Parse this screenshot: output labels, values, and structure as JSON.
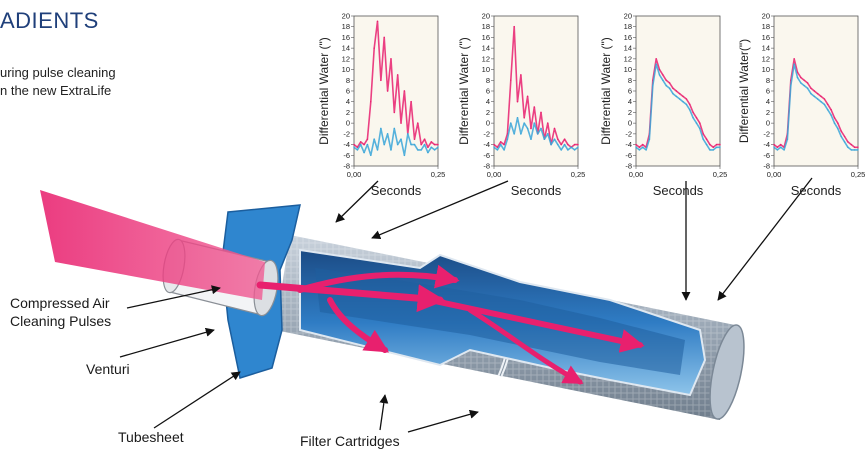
{
  "page": {
    "title": "ADIENTS",
    "intro_lines": [
      "uring pulse cleaning",
      "n the new ExtraLife"
    ]
  },
  "diagram": {
    "labels": {
      "compressed_air_line1": "Compressed Air",
      "compressed_air_line2": "Cleaning Pulses",
      "venturi": "Venturi",
      "tubesheet": "Tubesheet",
      "filter_cartridges": "Filter Cartridges"
    },
    "colors": {
      "pulse": "#e8206e",
      "tubesheet": "#2f86cf",
      "cartridge_outer": "#8c9bab",
      "cartridge_inner": "#2a6fb5",
      "cartridge_deep": "#16406f"
    }
  },
  "chart_data": [
    {
      "type": "line",
      "xlabel": "Seconds",
      "ylabel": "Differential Water (\")",
      "xlim": [
        0,
        0.25
      ],
      "ylim": [
        -8,
        20
      ],
      "x_tick_labels": [
        "0,00",
        "0,25"
      ],
      "y_ticks": [
        20,
        18,
        16,
        14,
        12,
        10,
        8,
        6,
        4,
        2,
        0,
        -2,
        -4,
        -6,
        -8
      ],
      "grid": false,
      "series": [
        {
          "color": "#e8206e",
          "x": [
            0,
            0.01,
            0.02,
            0.03,
            0.04,
            0.05,
            0.06,
            0.07,
            0.08,
            0.09,
            0.1,
            0.11,
            0.12,
            0.13,
            0.14,
            0.15,
            0.16,
            0.17,
            0.18,
            0.19,
            0.2,
            0.21,
            0.22,
            0.23,
            0.24,
            0.25
          ],
          "y": [
            -4,
            -4.5,
            -3.5,
            -4,
            -3,
            4,
            14,
            19,
            8,
            16,
            6,
            12,
            2,
            9,
            0,
            6,
            -2,
            4,
            -3,
            0,
            -4,
            -3,
            -4.5,
            -3.5,
            -4,
            -4
          ]
        },
        {
          "color": "#3aa6d8",
          "x": [
            0,
            0.01,
            0.02,
            0.03,
            0.04,
            0.05,
            0.06,
            0.07,
            0.08,
            0.09,
            0.1,
            0.11,
            0.12,
            0.13,
            0.14,
            0.15,
            0.16,
            0.17,
            0.18,
            0.19,
            0.2,
            0.21,
            0.22,
            0.23,
            0.24,
            0.25
          ],
          "y": [
            -4.5,
            -5,
            -4,
            -5.5,
            -4,
            -6,
            -3,
            -5,
            -1,
            -4,
            -2,
            -5,
            -1,
            -4,
            -3,
            -6,
            -2,
            -4,
            -4,
            -5,
            -5,
            -4,
            -5.5,
            -4.5,
            -5,
            -4.5
          ]
        }
      ]
    },
    {
      "type": "line",
      "xlabel": "Seconds",
      "ylabel": "Differential Water (\")",
      "xlim": [
        0,
        0.25
      ],
      "ylim": [
        -8,
        20
      ],
      "x_tick_labels": [
        "0,00",
        "0,25"
      ],
      "y_ticks": [
        20,
        18,
        16,
        14,
        12,
        10,
        8,
        6,
        4,
        2,
        0,
        -2,
        -4,
        -6,
        -8
      ],
      "grid": false,
      "series": [
        {
          "color": "#e8206e",
          "x": [
            0,
            0.01,
            0.02,
            0.03,
            0.04,
            0.05,
            0.06,
            0.07,
            0.08,
            0.09,
            0.1,
            0.11,
            0.12,
            0.13,
            0.14,
            0.15,
            0.16,
            0.17,
            0.18,
            0.19,
            0.2,
            0.21,
            0.22,
            0.23,
            0.24,
            0.25
          ],
          "y": [
            -4,
            -4.5,
            -3.5,
            -4,
            -2,
            8,
            18,
            4,
            9,
            1,
            5,
            -1,
            3,
            -2,
            2,
            -3,
            0,
            -4,
            -1,
            -3,
            -4,
            -3,
            -4,
            -4.5,
            -4,
            -4
          ]
        },
        {
          "color": "#3aa6d8",
          "x": [
            0,
            0.01,
            0.02,
            0.03,
            0.04,
            0.05,
            0.06,
            0.07,
            0.08,
            0.09,
            0.1,
            0.11,
            0.12,
            0.13,
            0.14,
            0.15,
            0.16,
            0.17,
            0.18,
            0.19,
            0.2,
            0.21,
            0.22,
            0.23,
            0.24,
            0.25
          ],
          "y": [
            -4.5,
            -5,
            -4,
            -5,
            -3,
            0,
            -2,
            1,
            -2,
            0,
            -1,
            -3,
            0,
            -2,
            -1,
            -3,
            -2,
            -4,
            -3,
            -4,
            -5,
            -4,
            -5,
            -4.5,
            -5,
            -4.5
          ]
        }
      ]
    },
    {
      "type": "line",
      "xlabel": "Seconds",
      "ylabel": "Differential Water (\")",
      "xlim": [
        0,
        0.25
      ],
      "ylim": [
        -8,
        20
      ],
      "x_tick_labels": [
        "0,00",
        "0,25"
      ],
      "y_ticks": [
        20,
        18,
        16,
        14,
        12,
        10,
        8,
        6,
        4,
        2,
        0,
        -2,
        -4,
        -6,
        -8
      ],
      "grid": false,
      "series": [
        {
          "color": "#e8206e",
          "x": [
            0,
            0.01,
            0.02,
            0.03,
            0.04,
            0.05,
            0.06,
            0.07,
            0.08,
            0.09,
            0.1,
            0.11,
            0.12,
            0.13,
            0.14,
            0.15,
            0.16,
            0.17,
            0.18,
            0.19,
            0.2,
            0.21,
            0.22,
            0.23,
            0.24,
            0.25
          ],
          "y": [
            -4,
            -4.5,
            -4,
            -4.5,
            -2,
            8,
            12,
            10,
            9,
            8,
            7.5,
            6.5,
            6,
            5.5,
            5,
            4.5,
            3.5,
            2,
            1,
            0,
            -2,
            -3,
            -4,
            -4.5,
            -4,
            -4
          ]
        },
        {
          "color": "#3aa6d8",
          "x": [
            0,
            0.01,
            0.02,
            0.03,
            0.04,
            0.05,
            0.06,
            0.07,
            0.08,
            0.09,
            0.1,
            0.11,
            0.12,
            0.13,
            0.14,
            0.15,
            0.16,
            0.17,
            0.18,
            0.19,
            0.2,
            0.21,
            0.22,
            0.23,
            0.24,
            0.25
          ],
          "y": [
            -4.5,
            -5,
            -4.5,
            -5,
            -3,
            7,
            11,
            9,
            8,
            7,
            6.5,
            5.5,
            5,
            4.5,
            4,
            3.5,
            2.5,
            1,
            0,
            -1,
            -3,
            -4,
            -5,
            -5,
            -4.5,
            -4.5
          ]
        }
      ]
    },
    {
      "type": "line",
      "xlabel": "Seconds",
      "ylabel": "Differential Water(\")",
      "xlim": [
        0,
        0.25
      ],
      "ylim": [
        -8,
        20
      ],
      "x_tick_labels": [
        "0,00",
        "0,25"
      ],
      "y_ticks": [
        20,
        18,
        16,
        14,
        12,
        10,
        8,
        6,
        4,
        2,
        0,
        -2,
        -4,
        -6,
        -8
      ],
      "grid": false,
      "series": [
        {
          "color": "#e8206e",
          "x": [
            0,
            0.01,
            0.02,
            0.03,
            0.04,
            0.05,
            0.06,
            0.07,
            0.08,
            0.09,
            0.1,
            0.11,
            0.12,
            0.13,
            0.14,
            0.15,
            0.16,
            0.17,
            0.18,
            0.19,
            0.2,
            0.21,
            0.22,
            0.23,
            0.24,
            0.25
          ],
          "y": [
            -4,
            -4.5,
            -4,
            -4.5,
            -2,
            8,
            12,
            9.5,
            8.5,
            8,
            7.5,
            6.5,
            6,
            5.5,
            5,
            4.5,
            3.5,
            2.5,
            1,
            0,
            -1.5,
            -2.5,
            -3.5,
            -4,
            -4.5,
            -4.5
          ]
        },
        {
          "color": "#3aa6d8",
          "x": [
            0,
            0.01,
            0.02,
            0.03,
            0.04,
            0.05,
            0.06,
            0.07,
            0.08,
            0.09,
            0.1,
            0.11,
            0.12,
            0.13,
            0.14,
            0.15,
            0.16,
            0.17,
            0.18,
            0.19,
            0.2,
            0.21,
            0.22,
            0.23,
            0.24,
            0.25
          ],
          "y": [
            -4.5,
            -5,
            -4.5,
            -5,
            -3,
            7,
            11,
            8.5,
            7.5,
            7,
            6.5,
            5.5,
            5,
            4.5,
            4,
            3.5,
            2.5,
            1.5,
            0,
            -1,
            -2.5,
            -3.5,
            -4.5,
            -5,
            -5,
            -5
          ]
        }
      ]
    }
  ]
}
